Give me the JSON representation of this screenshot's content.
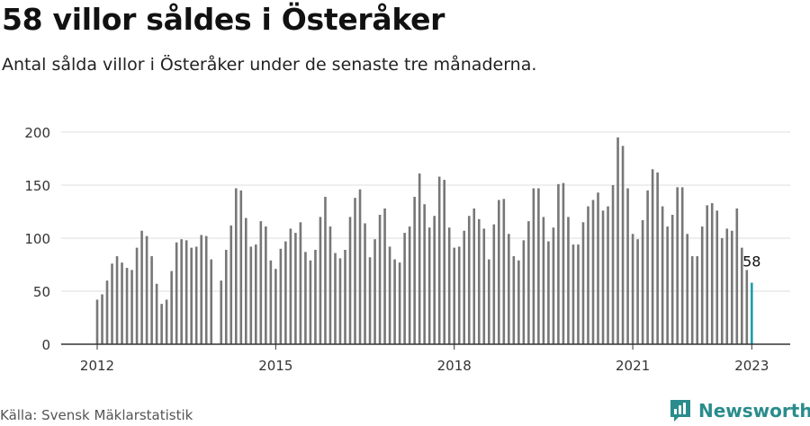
{
  "header": {
    "title": "58 villor såldes i Österåker",
    "subtitle": "Antal sålda villor i Österåker under de senaste tre månaderna."
  },
  "footer": {
    "source": "Källa: Svensk Mäklarstatistik",
    "brand": "Newsworthy",
    "brand_icon": "newsworthy-logo-icon"
  },
  "colors": {
    "bar": "#777777",
    "highlight": "#1aa0aa",
    "grid": "#dddddd",
    "axis": "#333333",
    "brand": "#2a8c8c"
  },
  "chart_data": {
    "type": "bar",
    "title": "58 villor såldes i Österåker",
    "subtitle": "Antal sålda villor i Österåker under de senaste tre månaderna.",
    "xlabel": "",
    "ylabel": "",
    "ylim": [
      0,
      200
    ],
    "yticks": [
      0,
      50,
      100,
      150,
      200
    ],
    "grid": true,
    "x_tick_labels": [
      {
        "label": "2012",
        "index": 0
      },
      {
        "label": "2015",
        "index": 36
      },
      {
        "label": "2018",
        "index": 72
      },
      {
        "label": "2021",
        "index": 108
      },
      {
        "label": "2023",
        "index": 132
      }
    ],
    "value_label": {
      "index": 132,
      "text": "58"
    },
    "highlight_index": 132,
    "values": [
      42,
      47,
      60,
      76,
      83,
      77,
      72,
      70,
      91,
      107,
      102,
      83,
      57,
      38,
      42,
      69,
      96,
      99,
      98,
      91,
      92,
      103,
      102,
      80,
      0,
      60,
      89,
      112,
      147,
      145,
      119,
      92,
      94,
      116,
      111,
      79,
      71,
      90,
      97,
      109,
      105,
      115,
      87,
      79,
      89,
      120,
      139,
      111,
      86,
      81,
      89,
      120,
      138,
      146,
      114,
      82,
      99,
      122,
      128,
      92,
      80,
      77,
      105,
      111,
      139,
      161,
      132,
      110,
      121,
      158,
      155,
      110,
      91,
      92,
      107,
      121,
      128,
      118,
      109,
      80,
      113,
      136,
      137,
      104,
      83,
      79,
      98,
      116,
      147,
      147,
      120,
      97,
      110,
      151,
      152,
      120,
      94,
      94,
      115,
      130,
      136,
      143,
      126,
      130,
      150,
      195,
      187,
      147,
      104,
      99,
      117,
      145,
      165,
      162,
      130,
      111,
      122,
      148,
      148,
      104,
      83,
      83,
      111,
      131,
      133,
      126,
      100,
      109,
      107,
      128,
      91,
      70,
      58
    ]
  }
}
